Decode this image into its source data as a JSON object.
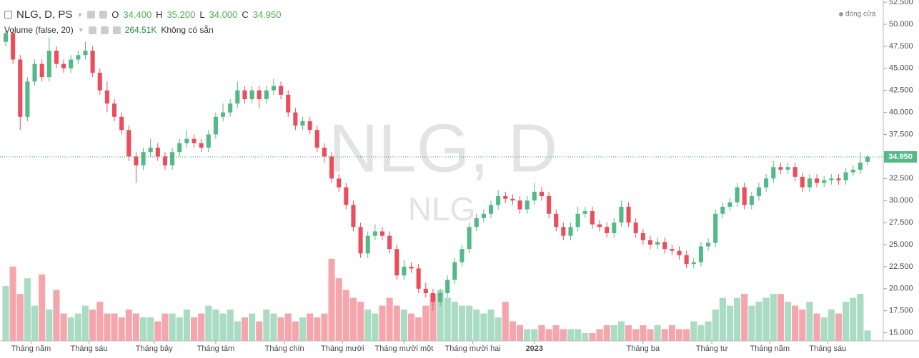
{
  "chart_data": {
    "type": "candlestick",
    "title": "NLG, D, PS",
    "watermark": "NLG, D",
    "watermark_sub": "NLG",
    "legend_note": "đóng cửa",
    "ohlc_labels": [
      "O",
      "H",
      "L",
      "C"
    ],
    "ohlc_value_labels": [
      "34.400",
      "35.200",
      "34.000",
      "34.950"
    ],
    "volume_title": "Volume (false, 20)",
    "volume_value_label": "264.51K",
    "volume_note": "Không có sẵn",
    "up_color": "#53b987",
    "down_color": "#eb4d5c",
    "open": [
      48,
      49,
      46,
      39.5,
      43.5,
      45.5,
      44,
      47,
      45.5,
      45,
      46,
      46.5,
      47,
      44.5,
      42.5,
      41,
      39.5,
      38,
      35,
      34,
      35.5,
      36,
      35,
      34,
      35.5,
      36.5,
      37,
      36.5,
      36,
      37.5,
      39.5,
      40,
      41,
      42.5,
      41.5,
      42.5,
      41.5,
      42.5,
      43,
      42,
      40,
      38.5,
      39,
      38,
      36,
      35,
      32.5,
      31.5,
      29.5,
      27,
      24,
      26,
      26.5,
      26,
      24.5,
      21.5,
      22.5,
      22.3,
      20,
      19.5,
      18.5,
      19.5,
      21,
      23,
      24.5,
      27,
      28,
      28.5,
      29.5,
      30.5,
      30.2,
      30,
      29,
      30,
      31,
      30.5,
      28.5,
      27,
      26,
      27,
      28.5,
      28.8,
      27.3,
      27,
      26.3,
      27.5,
      29.3,
      27.5,
      26.3,
      25.5,
      25,
      25.3,
      24.5,
      24.3,
      23.8,
      22.8,
      23,
      24.8,
      25.2,
      28.5,
      29.3,
      29.8,
      31.5,
      29.5,
      30.5,
      31.5,
      32.5,
      33.8,
      33.5,
      33.8,
      32.7,
      31.5,
      32.5,
      32,
      32.3,
      32.5,
      32.3,
      33.2,
      33.5,
      34.4
    ],
    "high": [
      49.5,
      49.5,
      46.5,
      44,
      46,
      46,
      48.5,
      47.5,
      46,
      46.5,
      47,
      48,
      47.5,
      45,
      43.5,
      41.5,
      40,
      38.5,
      35.5,
      36,
      37,
      36.5,
      35.5,
      36,
      37,
      38,
      37.5,
      37,
      38,
      40,
      41,
      41.5,
      43.5,
      43,
      43,
      43,
      43,
      43.8,
      43.5,
      42.5,
      40.5,
      39.5,
      39.5,
      38.5,
      36.5,
      35.5,
      33,
      32,
      30,
      27.5,
      26.5,
      27.3,
      27,
      26.5,
      25,
      23.3,
      23,
      22.8,
      20.7,
      20,
      20,
      21.5,
      23.5,
      25,
      27.5,
      28.5,
      29,
      30,
      31.2,
      31,
      30.7,
      30.5,
      30.5,
      32,
      31.5,
      31,
      29,
      27.5,
      27.5,
      29.3,
      29.3,
      29.3,
      27.8,
      27.5,
      28,
      30,
      29.8,
      28,
      26.8,
      26,
      25.8,
      25.8,
      25,
      24.8,
      24.3,
      23.5,
      25.3,
      25.7,
      29,
      29.8,
      30.3,
      32,
      32,
      31,
      32,
      33,
      34.5,
      34.3,
      34.3,
      34.3,
      33.2,
      33,
      33,
      32.8,
      33,
      33,
      33.7,
      34,
      35.5,
      35.2
    ],
    "low": [
      47.5,
      45.5,
      38,
      39,
      43,
      43.5,
      43.5,
      45,
      44.5,
      44.5,
      45.5,
      46,
      44,
      42,
      40,
      39,
      37.5,
      34.5,
      32,
      33.5,
      35,
      34.5,
      33.5,
      33.5,
      35,
      36,
      36,
      35.5,
      35.5,
      37,
      39,
      39.5,
      40.5,
      41,
      41,
      40.5,
      41,
      42,
      41.5,
      39.5,
      38,
      38,
      37.5,
      35.5,
      34.3,
      32,
      31,
      29,
      26.5,
      23.5,
      23.5,
      25.5,
      25.5,
      24,
      21,
      21,
      21.8,
      19.5,
      19,
      17.5,
      18,
      19,
      20.5,
      22.5,
      24,
      26.5,
      27.5,
      28,
      29,
      29.7,
      29.5,
      28.5,
      28.5,
      29.5,
      30,
      28,
      26.5,
      25.5,
      25.5,
      26.5,
      28,
      26.8,
      26.5,
      25.8,
      25.8,
      27,
      27,
      25.8,
      25,
      24.5,
      24.5,
      24,
      23.8,
      23.3,
      22.3,
      22.3,
      22.5,
      24.3,
      24.7,
      28,
      28.8,
      29.3,
      29,
      29,
      30,
      31,
      32,
      33,
      33,
      32.2,
      31,
      31,
      31.5,
      31.5,
      31.8,
      31.8,
      31.8,
      32.8,
      33,
      34
    ],
    "close": [
      49,
      46,
      39.5,
      43.5,
      45.5,
      44,
      47,
      45.5,
      45,
      46,
      46.5,
      47,
      44.5,
      42.5,
      41,
      39.5,
      38,
      35,
      34,
      35.5,
      36,
      35,
      34,
      35.5,
      36.5,
      37,
      36.5,
      36,
      37.5,
      39.5,
      40,
      41,
      42.5,
      41.5,
      42.5,
      41.5,
      42.5,
      43,
      42,
      40,
      38.5,
      39,
      38,
      36,
      35,
      32.5,
      31.5,
      29.5,
      27,
      24,
      26,
      26.5,
      26,
      24.5,
      21.5,
      22.5,
      22.3,
      20,
      19.5,
      18.5,
      19.5,
      21,
      23,
      24.5,
      27,
      28,
      28.5,
      29.5,
      30.5,
      30.2,
      30,
      29,
      30,
      31,
      30.5,
      28.5,
      27,
      26,
      27,
      28.5,
      28.8,
      27.3,
      27,
      26.3,
      27.5,
      29.3,
      27.5,
      26.3,
      25.5,
      25,
      25.3,
      24.5,
      24.3,
      23.8,
      22.8,
      23,
      24.8,
      25.2,
      28.5,
      29.3,
      29.8,
      31.5,
      29.5,
      30.5,
      31.5,
      32.5,
      33.8,
      33.5,
      33.8,
      32.7,
      31.5,
      32.5,
      32,
      32.3,
      32.5,
      32.3,
      33.2,
      33.5,
      34.3,
      34.95
    ],
    "volume": [
      1400,
      1900,
      1200,
      1600,
      900,
      1700,
      800,
      1300,
      700,
      600,
      700,
      900,
      800,
      1000,
      700,
      700,
      600,
      800,
      700,
      600,
      600,
      500,
      700,
      700,
      600,
      800,
      600,
      700,
      900,
      800,
      700,
      800,
      500,
      600,
      700,
      500,
      800,
      700,
      600,
      700,
      500,
      600,
      700,
      600,
      700,
      2100,
      1600,
      1300,
      1100,
      1000,
      800,
      700,
      900,
      1100,
      900,
      800,
      700,
      600,
      900,
      1200,
      1300,
      1100,
      1000,
      900,
      900,
      800,
      700,
      800,
      600,
      1000,
      500,
      400,
      300,
      300,
      400,
      300,
      400,
      300,
      300,
      300,
      200,
      200,
      300,
      400,
      400,
      500,
      400,
      300,
      400,
      300,
      400,
      300,
      400,
      300,
      300,
      500,
      400,
      500,
      800,
      1100,
      900,
      1100,
      1200,
      900,
      1000,
      1100,
      1200,
      1200,
      1000,
      900,
      800,
      1000,
      700,
      600,
      800,
      700,
      1000,
      1100,
      1200,
      264.51
    ],
    "vlim": [
      0,
      2150
    ],
    "ylim": [
      14.08,
      52.75
    ],
    "yticks": [
      {
        "value": 15,
        "label": "15.000"
      },
      {
        "value": 17.5,
        "label": "17.500"
      },
      {
        "value": 20,
        "label": "20.000"
      },
      {
        "value": 22.5,
        "label": "22.500"
      },
      {
        "value": 25,
        "label": "25.000"
      },
      {
        "value": 27.5,
        "label": "27.500"
      },
      {
        "value": 30,
        "label": "30.000"
      },
      {
        "value": 32.5,
        "label": "32.500"
      },
      {
        "value": 35,
        "label": "35.000"
      },
      {
        "value": 37.5,
        "label": "37.500"
      },
      {
        "value": 40,
        "label": "40.000"
      },
      {
        "value": 42.5,
        "label": "42.500"
      },
      {
        "value": 45,
        "label": "45.000"
      },
      {
        "value": 47.5,
        "label": "47.500"
      },
      {
        "value": 50,
        "label": "50.000"
      },
      {
        "value": 52.5,
        "label": "52.500"
      }
    ],
    "xticks": [
      {
        "value": 3.5,
        "label": "Tháng năm"
      },
      {
        "value": 11.5,
        "label": "Tháng sáu"
      },
      {
        "value": 20.5,
        "label": "Tháng bảy"
      },
      {
        "value": 29,
        "label": "Tháng tám"
      },
      {
        "value": 38.5,
        "label": "Tháng chín"
      },
      {
        "value": 46.5,
        "label": "Tháng mười"
      },
      {
        "value": 55,
        "label": "Tháng mười một"
      },
      {
        "value": 64.5,
        "label": "Tháng mười hai"
      },
      {
        "value": 73,
        "label": "2023"
      },
      {
        "value": 88,
        "label": "Tháng ba"
      },
      {
        "value": 97.5,
        "label": "Tháng tư"
      },
      {
        "value": 105.5,
        "label": "Tháng năm"
      },
      {
        "value": 113.5,
        "label": "Tháng sáu"
      }
    ],
    "last_price_line": true
  }
}
